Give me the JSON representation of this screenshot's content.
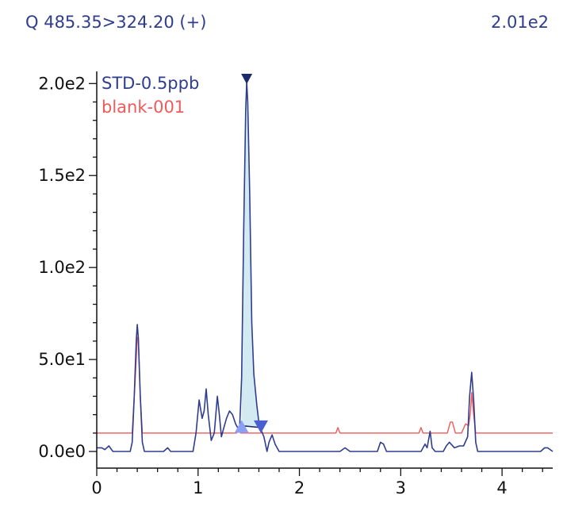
{
  "header": {
    "transition": "Q 485.35>324.20 (+)",
    "max_intensity": "2.01e2"
  },
  "colors": {
    "series_std": "#2f3d8f",
    "series_blank": "#f05a5a",
    "peak_fill": "#d3eaf2",
    "peak_marker_top": "#1a2a6c",
    "peak_marker_end": "#4a5fd0",
    "peak_marker_start": "#8aa0f5",
    "axis": "#111111"
  },
  "chart_data": {
    "type": "line",
    "title": "",
    "xlabel": "",
    "ylabel": "",
    "xlim": [
      0,
      4.5
    ],
    "ylim": [
      0,
      201
    ],
    "x_ticks": [
      0,
      1,
      2,
      3,
      4
    ],
    "x_tick_labels": [
      "0",
      "1",
      "2",
      "3",
      "4"
    ],
    "y_ticks": [
      0,
      50,
      100,
      150,
      200
    ],
    "y_tick_labels": [
      "0.0e0",
      "5.0e1",
      "1.0e2",
      "1.5e2",
      "2.0e2"
    ],
    "legend": {
      "placement": "top-left",
      "entries": [
        {
          "label": "STD-0.5ppb",
          "color": "#2f3d8f"
        },
        {
          "label": "blank-001",
          "color": "#f05a5a"
        }
      ]
    },
    "series": [
      {
        "name": "STD-0.5ppb",
        "color": "#2f3d8f",
        "points": [
          [
            0.0,
            2
          ],
          [
            0.05,
            2
          ],
          [
            0.08,
            1
          ],
          [
            0.12,
            3
          ],
          [
            0.16,
            0
          ],
          [
            0.2,
            0
          ],
          [
            0.33,
            0
          ],
          [
            0.35,
            5
          ],
          [
            0.37,
            30
          ],
          [
            0.39,
            60
          ],
          [
            0.4,
            69
          ],
          [
            0.41,
            62
          ],
          [
            0.43,
            30
          ],
          [
            0.45,
            5
          ],
          [
            0.47,
            0
          ],
          [
            0.66,
            0
          ],
          [
            0.7,
            2
          ],
          [
            0.73,
            0
          ],
          [
            0.95,
            0
          ],
          [
            0.98,
            10
          ],
          [
            1.01,
            28
          ],
          [
            1.04,
            18
          ],
          [
            1.06,
            22
          ],
          [
            1.08,
            34
          ],
          [
            1.1,
            20
          ],
          [
            1.13,
            6
          ],
          [
            1.16,
            10
          ],
          [
            1.19,
            30
          ],
          [
            1.21,
            20
          ],
          [
            1.23,
            8
          ],
          [
            1.25,
            12
          ],
          [
            1.28,
            18
          ],
          [
            1.31,
            22
          ],
          [
            1.34,
            20
          ],
          [
            1.37,
            15
          ],
          [
            1.39,
            13
          ],
          [
            1.41,
            13
          ],
          [
            1.43,
            40
          ],
          [
            1.45,
            120
          ],
          [
            1.47,
            185
          ],
          [
            1.48,
            201
          ],
          [
            1.49,
            190
          ],
          [
            1.51,
            140
          ],
          [
            1.53,
            70
          ],
          [
            1.55,
            42
          ],
          [
            1.58,
            25
          ],
          [
            1.6,
            16
          ],
          [
            1.62,
            12
          ],
          [
            1.65,
            8
          ],
          [
            1.68,
            0
          ],
          [
            1.7,
            5
          ],
          [
            1.73,
            9
          ],
          [
            1.76,
            4
          ],
          [
            1.8,
            0
          ],
          [
            2.4,
            0
          ],
          [
            2.45,
            2
          ],
          [
            2.5,
            0
          ],
          [
            2.77,
            0
          ],
          [
            2.8,
            5
          ],
          [
            2.83,
            4
          ],
          [
            2.86,
            0
          ],
          [
            3.2,
            0
          ],
          [
            3.24,
            4
          ],
          [
            3.26,
            2
          ],
          [
            3.29,
            11
          ],
          [
            3.31,
            2
          ],
          [
            3.34,
            0
          ],
          [
            3.42,
            0
          ],
          [
            3.45,
            3
          ],
          [
            3.48,
            5
          ],
          [
            3.53,
            2
          ],
          [
            3.58,
            3
          ],
          [
            3.62,
            3
          ],
          [
            3.66,
            8
          ],
          [
            3.68,
            30
          ],
          [
            3.7,
            43
          ],
          [
            3.72,
            28
          ],
          [
            3.74,
            5
          ],
          [
            3.76,
            0
          ],
          [
            4.38,
            0
          ],
          [
            4.42,
            2
          ],
          [
            4.45,
            2
          ],
          [
            4.5,
            0
          ]
        ]
      },
      {
        "name": "blank-001",
        "color": "#f05a5a",
        "points": [
          [
            0.0,
            10
          ],
          [
            0.35,
            10
          ],
          [
            0.38,
            40
          ],
          [
            0.4,
            62
          ],
          [
            0.41,
            62
          ],
          [
            0.43,
            30
          ],
          [
            0.45,
            10
          ],
          [
            1.38,
            10
          ],
          [
            1.4,
            13
          ],
          [
            1.42,
            10
          ],
          [
            2.36,
            10
          ],
          [
            2.38,
            13
          ],
          [
            2.4,
            10
          ],
          [
            3.18,
            10
          ],
          [
            3.2,
            13
          ],
          [
            3.22,
            10
          ],
          [
            3.46,
            10
          ],
          [
            3.49,
            16
          ],
          [
            3.51,
            16
          ],
          [
            3.54,
            10
          ],
          [
            3.6,
            10
          ],
          [
            3.64,
            15
          ],
          [
            3.67,
            14
          ],
          [
            3.69,
            22
          ],
          [
            3.7,
            32
          ],
          [
            3.72,
            20
          ],
          [
            3.74,
            10
          ],
          [
            4.5,
            10
          ]
        ]
      }
    ],
    "integrated_peak": {
      "series": "STD-0.5ppb",
      "start": [
        1.43,
        14
      ],
      "apex": [
        1.48,
        201
      ],
      "end": [
        1.62,
        13
      ]
    }
  }
}
